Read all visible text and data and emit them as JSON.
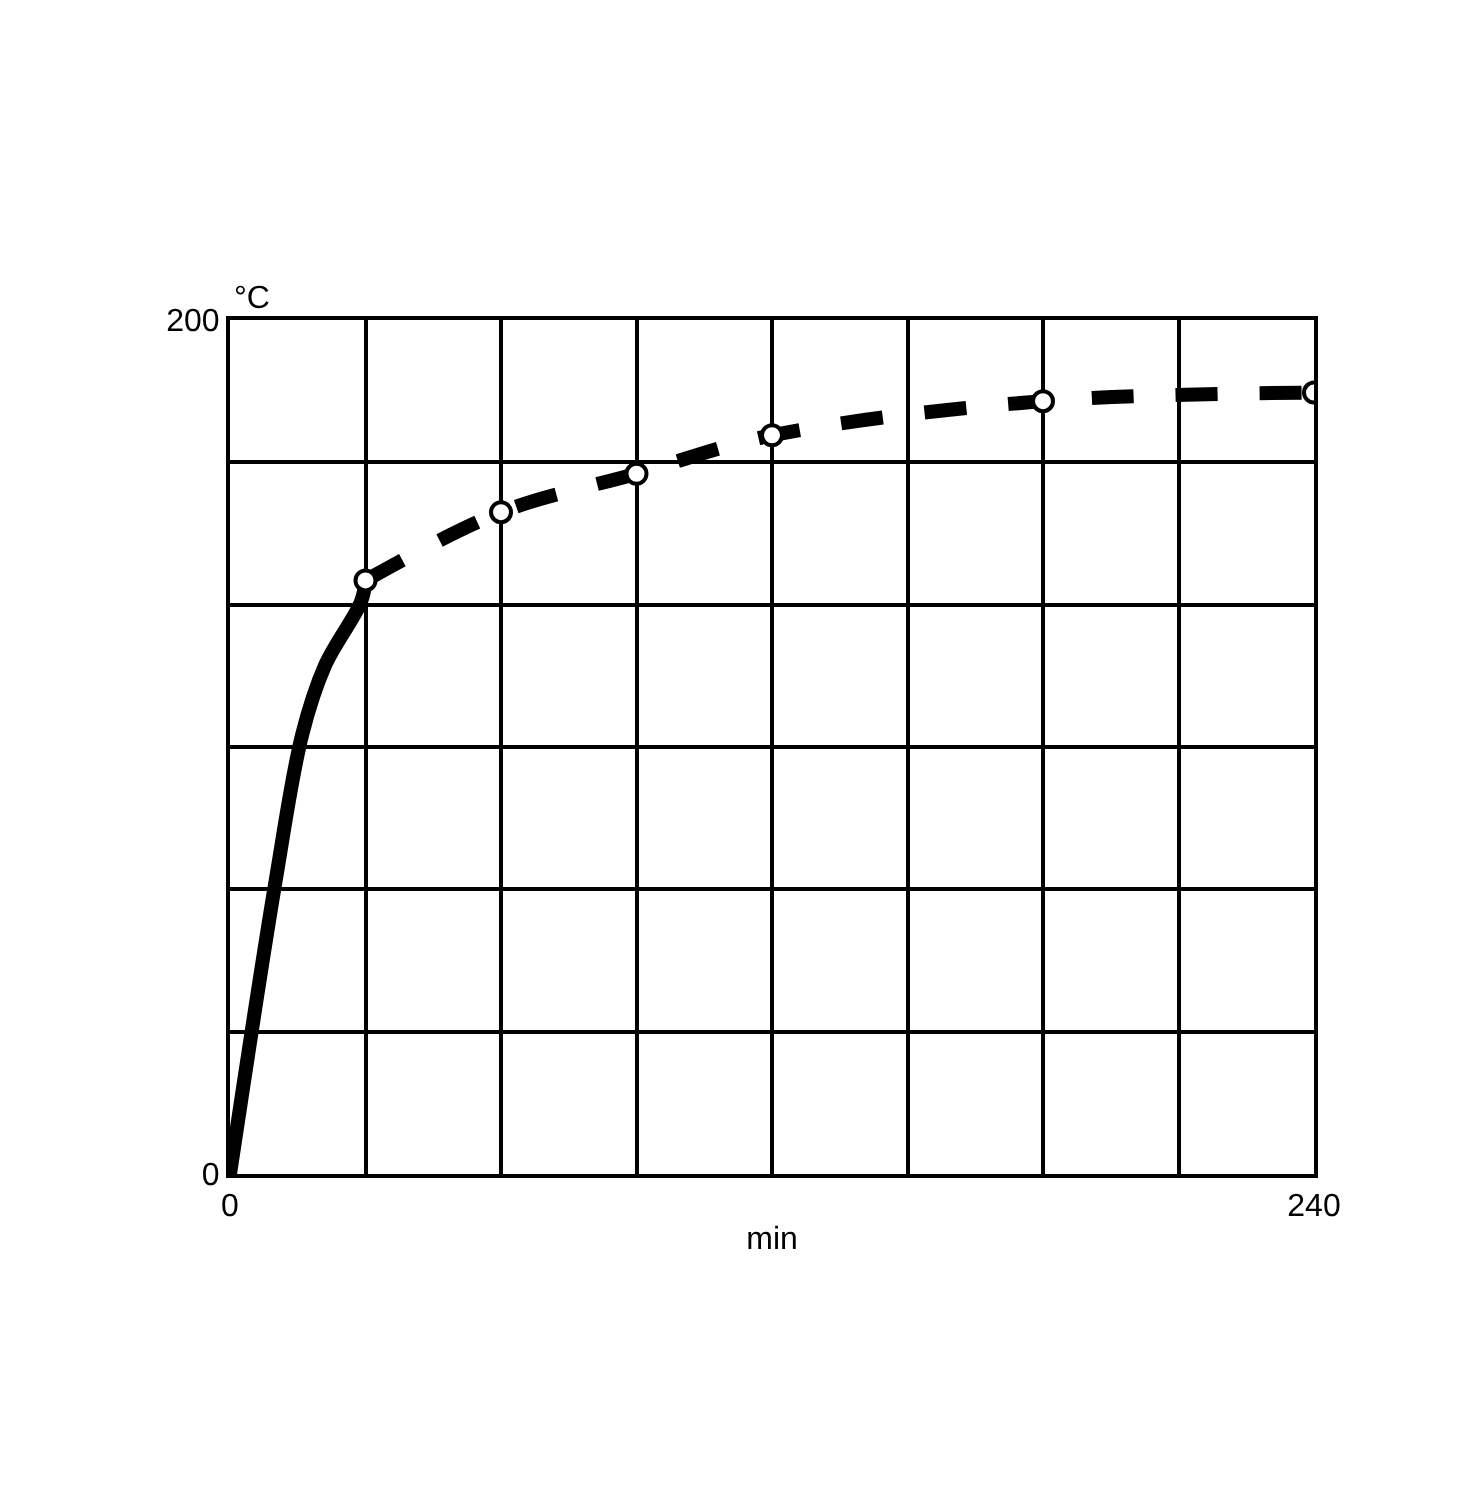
{
  "chart_data": {
    "type": "line",
    "xlabel": "min",
    "ylabel": "°C",
    "xlim": [
      0,
      240
    ],
    "ylim": [
      0,
      200
    ],
    "xticks": [
      0,
      {
        "value": 30,
        "label": null
      },
      {
        "value": 60,
        "label": null
      },
      {
        "value": 90,
        "label": null
      },
      {
        "value": 120,
        "label": null
      },
      {
        "value": 150,
        "label": null
      },
      {
        "value": 180,
        "label": null
      },
      {
        "value": 210,
        "label": null
      },
      240
    ],
    "yticks": [
      0,
      {
        "value": 33.3,
        "label": null
      },
      {
        "value": 66.7,
        "label": null
      },
      {
        "value": 100,
        "label": null
      },
      {
        "value": 133.3,
        "label": null
      },
      {
        "value": 166.7,
        "label": null
      },
      200
    ],
    "grid": true,
    "series": [
      {
        "color": "#000000",
        "x": [
          0,
          10,
          16,
          21,
          29,
          30
        ],
        "values": [
          0,
          68,
          103,
          119,
          134,
          139
        ],
        "line_style": "solid",
        "marker": "none"
      },
      {
        "color": "#000000",
        "x": [
          30,
          60,
          90,
          120,
          180,
          240
        ],
        "values": [
          139,
          155,
          164,
          173,
          181,
          183
        ],
        "line_style": "dashed",
        "marker": "circle"
      }
    ]
  }
}
